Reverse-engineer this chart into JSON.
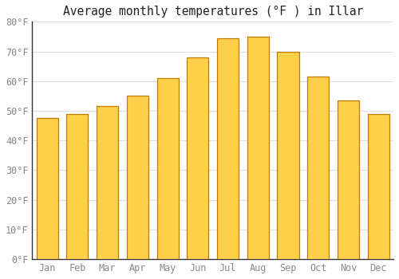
{
  "title": "Average monthly temperatures (°F ) in Illar",
  "months": [
    "Jan",
    "Feb",
    "Mar",
    "Apr",
    "May",
    "Jun",
    "Jul",
    "Aug",
    "Sep",
    "Oct",
    "Nov",
    "Dec"
  ],
  "values": [
    47.5,
    49.0,
    51.5,
    55.0,
    61.0,
    68.0,
    74.5,
    75.0,
    70.0,
    61.5,
    53.5,
    49.0
  ],
  "bar_color_top": "#FFD04A",
  "bar_color_bottom": "#E89000",
  "bar_edge_color": "#C87800",
  "background_color": "#FFFFFF",
  "plot_bg_color": "#FFFFFF",
  "ylim": [
    0,
    80
  ],
  "yticks": [
    0,
    10,
    20,
    30,
    40,
    50,
    60,
    70,
    80
  ],
  "ytick_labels": [
    "0°F",
    "10°F",
    "20°F",
    "30°F",
    "40°F",
    "50°F",
    "60°F",
    "70°F",
    "80°F"
  ],
  "grid_color": "#E0E0E0",
  "tick_color": "#888888",
  "spine_color": "#333333",
  "title_fontsize": 10.5,
  "axis_fontsize": 8.5
}
